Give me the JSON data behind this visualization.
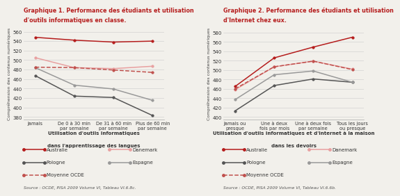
{
  "graph1": {
    "title1": "Graphique 1. Performance des étudiants et utilisation",
    "title2": "d'outils informatiques en classe.",
    "xlabel1": "Utilisation d'outils informatiques",
    "xlabel2": "dans l'apprentissage des langues",
    "ylabel": "Compréhension des contenus numériques",
    "source": "Source : OCDE, PISA 2009 Volume VI, Tableau VI.6.8c.",
    "xticks": [
      "Jamais",
      "De 0 à 30 min\npar semaine",
      "De 31 à 60 min\npar semaine",
      "Plus de 60 min\npar semaine"
    ],
    "ylim": [
      375,
      568
    ],
    "yticks": [
      380,
      400,
      420,
      440,
      460,
      480,
      500,
      520,
      540,
      560
    ],
    "series": {
      "Australie": {
        "values": [
          548,
          542,
          538,
          540
        ],
        "color": "#b51c1c",
        "dash": "solid",
        "marker": "o"
      },
      "Danemark": {
        "values": [
          505,
          484,
          482,
          487
        ],
        "color": "#e8a0a0",
        "dash": "solid",
        "marker": "o"
      },
      "Pologne": {
        "values": [
          467,
          424,
          421,
          383
        ],
        "color": "#555555",
        "dash": "solid",
        "marker": "o"
      },
      "Espagne": {
        "values": [
          484,
          447,
          439,
          415
        ],
        "color": "#999999",
        "dash": "solid",
        "marker": "o"
      },
      "Moyenne OCDE": {
        "values": [
          485,
          484,
          479,
          474
        ],
        "color": "#c0504d",
        "dash": "dashed",
        "marker": "o"
      }
    }
  },
  "graph2": {
    "title1": "Graphique 2. Performance des étudiants et utilisation",
    "title2": "d'Internet chez eux.",
    "xlabel1": "Utilisation d'outils informatiques et d'Internet à la maison",
    "xlabel2": "dans les devoirs",
    "ylabel": "Compréhension des contenus numériques",
    "source": "Source : OCDE, PISA 2009 Volume VI, Tableau VI.6.6b.",
    "xticks": [
      "Jamais ou\npresque",
      "Une à deux\nfois par mois",
      "Une à deux fois\npar semaine",
      "Tous les jours\nou presque"
    ],
    "ylim": [
      395,
      590
    ],
    "yticks": [
      400,
      420,
      440,
      460,
      480,
      500,
      520,
      540,
      560,
      580
    ],
    "series": {
      "Australie": {
        "values": [
          465,
          526,
          549,
          570
        ],
        "color": "#b51c1c",
        "dash": "solid",
        "marker": "o"
      },
      "Danemark": {
        "values": [
          458,
          507,
          519,
          502
        ],
        "color": "#e8a0a0",
        "dash": "solid",
        "marker": "o"
      },
      "Pologne": {
        "values": [
          413,
          467,
          481,
          474
        ],
        "color": "#555555",
        "dash": "solid",
        "marker": "o"
      },
      "Espagne": {
        "values": [
          437,
          490,
          498,
          474
        ],
        "color": "#999999",
        "dash": "solid",
        "marker": "o"
      },
      "Moyenne OCDE": {
        "values": [
          460,
          507,
          519,
          501
        ],
        "color": "#c0504d",
        "dash": "dashed",
        "marker": "o"
      }
    }
  },
  "legend_left": [
    "Australie",
    "Pologne",
    "Moyenne OCDE"
  ],
  "legend_right": [
    "Danemark",
    "Espagne"
  ],
  "bg_color": "#f2f0eb"
}
